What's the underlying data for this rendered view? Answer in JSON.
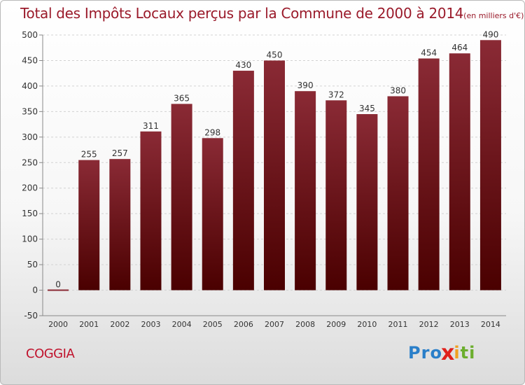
{
  "title": "Total des Impôts Locaux perçus par la Commune de 2000 à 2014",
  "unit": "(en milliers d'€)",
  "commune": "COGGIA",
  "brand": {
    "text": "Proxiti",
    "letters": [
      {
        "char": "P",
        "color": "#2a7fc9"
      },
      {
        "char": "r",
        "color": "#2a7fc9"
      },
      {
        "char": "o",
        "color": "#2a7fc9"
      },
      {
        "char": "x",
        "color": "#e0201b"
      },
      {
        "char": "i",
        "color": "#f0a020"
      },
      {
        "char": "t",
        "color": "#6cae2e"
      },
      {
        "char": "i",
        "color": "#6cae2e"
      }
    ]
  },
  "chart_data": {
    "type": "bar",
    "title": "Total des Impôts Locaux perçus par la Commune de 2000 à 2014",
    "categories": [
      "2000",
      "2001",
      "2002",
      "2003",
      "2004",
      "2005",
      "2006",
      "2007",
      "2008",
      "2009",
      "2010",
      "2011",
      "2012",
      "2013",
      "2014"
    ],
    "values": [
      0,
      255,
      257,
      311,
      365,
      298,
      430,
      450,
      390,
      372,
      345,
      380,
      454,
      464,
      490
    ],
    "ylim": [
      -50,
      500
    ],
    "yticks": [
      -50,
      0,
      50,
      100,
      150,
      200,
      250,
      300,
      350,
      400,
      450,
      500
    ],
    "grid": true,
    "bar_color_top": "#8a2a35",
    "bar_color_bottom": "#4a0000"
  }
}
